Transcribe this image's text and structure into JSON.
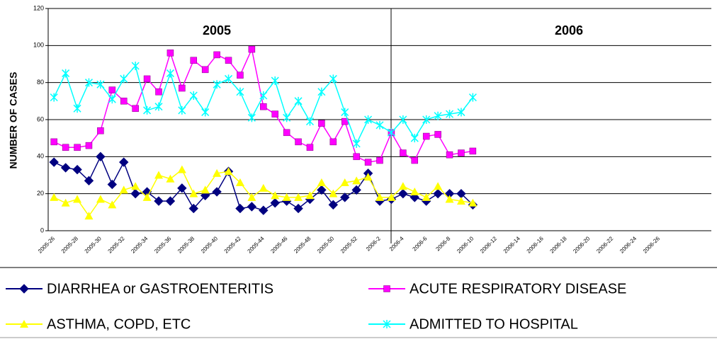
{
  "chart_data": {
    "type": "line",
    "y_label": "NUMBER OF CASES",
    "annotations": [
      "2005",
      "2006"
    ],
    "categories": [
      "2005-26",
      null,
      "2005-28",
      null,
      "2005-30",
      null,
      "2005-32",
      null,
      "2005-34",
      null,
      "2005-36",
      null,
      "2005-38",
      null,
      "2005-40",
      null,
      "2005-42",
      null,
      "2005-44",
      null,
      "2005-46",
      null,
      "2005-48",
      null,
      "2005-50",
      null,
      "2005-52",
      null,
      "2006-2",
      null,
      "2006-4",
      null,
      "2006-6",
      null,
      "2006-8",
      null,
      "2006-10",
      null,
      "2006-12",
      null,
      "2006-14",
      null,
      "2006-16",
      null,
      "2006-18",
      null,
      "2006-20",
      null,
      "2006-22",
      null,
      "2006-24",
      null,
      "2006-26",
      null,
      null,
      null,
      null
    ],
    "series": [
      {
        "name": "DIARRHEA or GASTROENTERITIS",
        "color": "#000080",
        "marker": "diamond",
        "values": [
          37,
          34,
          33,
          27,
          40,
          25,
          37,
          20,
          21,
          16,
          16,
          23,
          12,
          19,
          21,
          32,
          12,
          13,
          11,
          15,
          16,
          12,
          17,
          22,
          14,
          18,
          22,
          31,
          16,
          17,
          20,
          18,
          16,
          20,
          20,
          20,
          14,
          null,
          null,
          null,
          null,
          null,
          null,
          null,
          null,
          null,
          null,
          null,
          null,
          null,
          null,
          null,
          null,
          null,
          null,
          null,
          null
        ]
      },
      {
        "name": "ACUTE RESPIRATORY DISEASE",
        "color": "#ff00ff",
        "marker": "square",
        "values": [
          48,
          45,
          45,
          46,
          54,
          76,
          70,
          66,
          82,
          75,
          96,
          77,
          92,
          87,
          95,
          92,
          84,
          98,
          67,
          63,
          53,
          48,
          45,
          58,
          48,
          59,
          40,
          37,
          38,
          53,
          42,
          38,
          51,
          52,
          41,
          42,
          43,
          null,
          null,
          null,
          null,
          null,
          null,
          null,
          null,
          null,
          null,
          null,
          null,
          null,
          null,
          null,
          null,
          null,
          null,
          null,
          null
        ]
      },
      {
        "name": "ASTHMA, COPD, ETC",
        "color": "#ffff00",
        "marker": "triangle",
        "values": [
          18,
          15,
          17,
          8,
          17,
          14,
          22,
          24,
          18,
          30,
          28,
          33,
          20,
          22,
          31,
          32,
          26,
          18,
          23,
          19,
          18,
          18,
          19,
          26,
          20,
          26,
          27,
          29,
          18,
          18,
          24,
          21,
          18,
          24,
          17,
          16,
          15,
          null,
          null,
          null,
          null,
          null,
          null,
          null,
          null,
          null,
          null,
          null,
          null,
          null,
          null,
          null,
          null,
          null,
          null,
          null,
          null
        ]
      },
      {
        "name": "ADMITTED TO HOSPITAL",
        "color": "#00ffff",
        "marker": "star",
        "values": [
          72,
          85,
          66,
          80,
          79,
          71,
          82,
          89,
          65,
          67,
          85,
          65,
          73,
          64,
          79,
          82,
          75,
          61,
          73,
          81,
          61,
          70,
          59,
          75,
          82,
          64,
          47,
          60,
          57,
          53,
          60,
          50,
          60,
          62,
          63,
          64,
          72,
          null,
          null,
          null,
          null,
          null,
          null,
          null,
          null,
          null,
          null,
          null,
          null,
          null,
          null,
          null,
          null,
          null,
          null,
          null,
          null
        ]
      }
    ],
    "ylim": [
      0,
      120
    ],
    "yticks": [
      0,
      20,
      40,
      60,
      80,
      100,
      120
    ],
    "grid": true
  }
}
